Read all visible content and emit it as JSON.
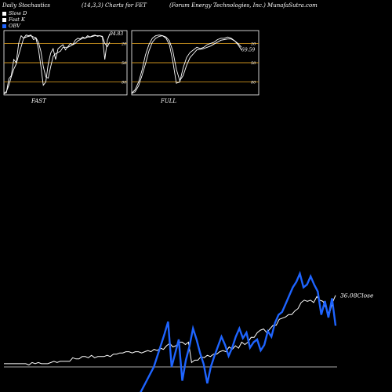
{
  "header": {
    "title_left": "Daily Stochastics",
    "title_mid": "(14,3,3) Charts for FET",
    "title_right": "(Forum Energy Technologies, Inc.) MunafaSutra.com"
  },
  "legend": [
    {
      "label": "Slow  D",
      "color": "#ffffff"
    },
    {
      "label": "Fast K",
      "color": "#ffffff"
    },
    {
      "label": "OBV",
      "color": "#1e64ff"
    }
  ],
  "colors": {
    "background": "#000000",
    "band": "#c8901e",
    "line": "#ffffff",
    "obv": "#1e64ff"
  },
  "chart_data": [
    {
      "type": "line",
      "title": "FAST",
      "ylim": [
        0,
        100
      ],
      "band_lines": [
        20,
        50,
        80
      ],
      "tick_labels": [
        "80",
        "50",
        "20"
      ],
      "last_value_label": "94.83",
      "series": [
        {
          "name": "Fast K",
          "values": [
            2,
            3,
            25,
            30,
            55,
            50,
            80,
            92,
            88,
            93,
            92,
            93,
            86,
            88,
            72,
            45,
            15,
            20,
            48,
            65,
            72,
            55,
            72,
            75,
            78,
            70,
            75,
            80,
            78,
            85,
            88,
            87,
            90,
            88,
            92,
            90,
            92,
            93,
            91,
            92,
            90,
            55,
            85,
            95
          ]
        },
        {
          "name": "Slow  D",
          "values": [
            3,
            5,
            15,
            28,
            40,
            48,
            62,
            75,
            88,
            90,
            91,
            92,
            90,
            89,
            82,
            68,
            44,
            28,
            26,
            44,
            60,
            64,
            66,
            68,
            74,
            74,
            74,
            76,
            78,
            80,
            84,
            86,
            88,
            88,
            90,
            90,
            91,
            92,
            92,
            92,
            91,
            80,
            75,
            82
          ]
        }
      ]
    },
    {
      "type": "line",
      "title": "FULL",
      "ylim": [
        0,
        100
      ],
      "band_lines": [
        20,
        50,
        80
      ],
      "tick_labels": [
        "80",
        "50",
        "20"
      ],
      "last_value_label": "69.59",
      "series": [
        {
          "name": "Fast K",
          "values": [
            3,
            8,
            20,
            38,
            62,
            78,
            88,
            92,
            93,
            92,
            88,
            78,
            52,
            18,
            20,
            42,
            58,
            66,
            70,
            74,
            72,
            74,
            78,
            80,
            82,
            86,
            88,
            88,
            90,
            88,
            84,
            78,
            70
          ]
        },
        {
          "name": "Slow  D",
          "values": [
            2,
            5,
            14,
            30,
            48,
            68,
            82,
            88,
            91,
            92,
            90,
            84,
            68,
            40,
            22,
            30,
            46,
            58,
            64,
            70,
            71,
            72,
            74,
            76,
            79,
            82,
            85,
            86,
            87,
            87,
            84,
            80,
            74
          ]
        }
      ]
    },
    {
      "type": "line",
      "close_label": "36.08Close",
      "series": [
        {
          "name": "Close",
          "values": [
            2,
            2,
            2,
            2,
            2,
            2,
            2,
            2,
            1,
            3,
            2,
            3,
            2,
            2,
            2,
            3,
            4,
            3,
            4,
            4,
            4,
            4,
            7,
            6,
            6,
            8,
            8,
            7,
            9,
            7,
            8,
            8,
            8,
            9,
            8,
            10,
            10,
            11,
            11,
            12,
            12,
            11,
            12,
            12,
            11,
            12,
            13,
            12,
            14,
            13,
            15,
            14,
            17,
            19,
            16,
            17,
            20,
            20,
            18,
            20,
            3,
            5,
            5,
            8,
            7,
            9,
            8,
            10,
            10,
            12,
            13,
            12,
            16,
            14,
            17,
            15,
            20,
            18,
            20,
            24,
            24,
            28,
            30,
            31,
            28,
            31,
            34,
            34,
            39,
            40,
            41,
            43,
            43,
            46,
            48,
            53,
            55,
            54,
            55,
            53,
            58,
            55,
            54,
            48,
            43,
            53,
            59
          ]
        },
        {
          "name": "OBV",
          "values": [
            -20,
            -15,
            -10,
            -5,
            0,
            8,
            16,
            24,
            33,
            0,
            10,
            20,
            -10,
            5,
            15,
            28,
            20,
            10,
            2,
            -12,
            0,
            8,
            15,
            22,
            16,
            8,
            14,
            22,
            28,
            21,
            25,
            14,
            18,
            20,
            12,
            16,
            26,
            22,
            32,
            38,
            40,
            46,
            52,
            58,
            62,
            68,
            58,
            60,
            66,
            60,
            55,
            38,
            48,
            36,
            50,
            30
          ]
        }
      ]
    }
  ]
}
